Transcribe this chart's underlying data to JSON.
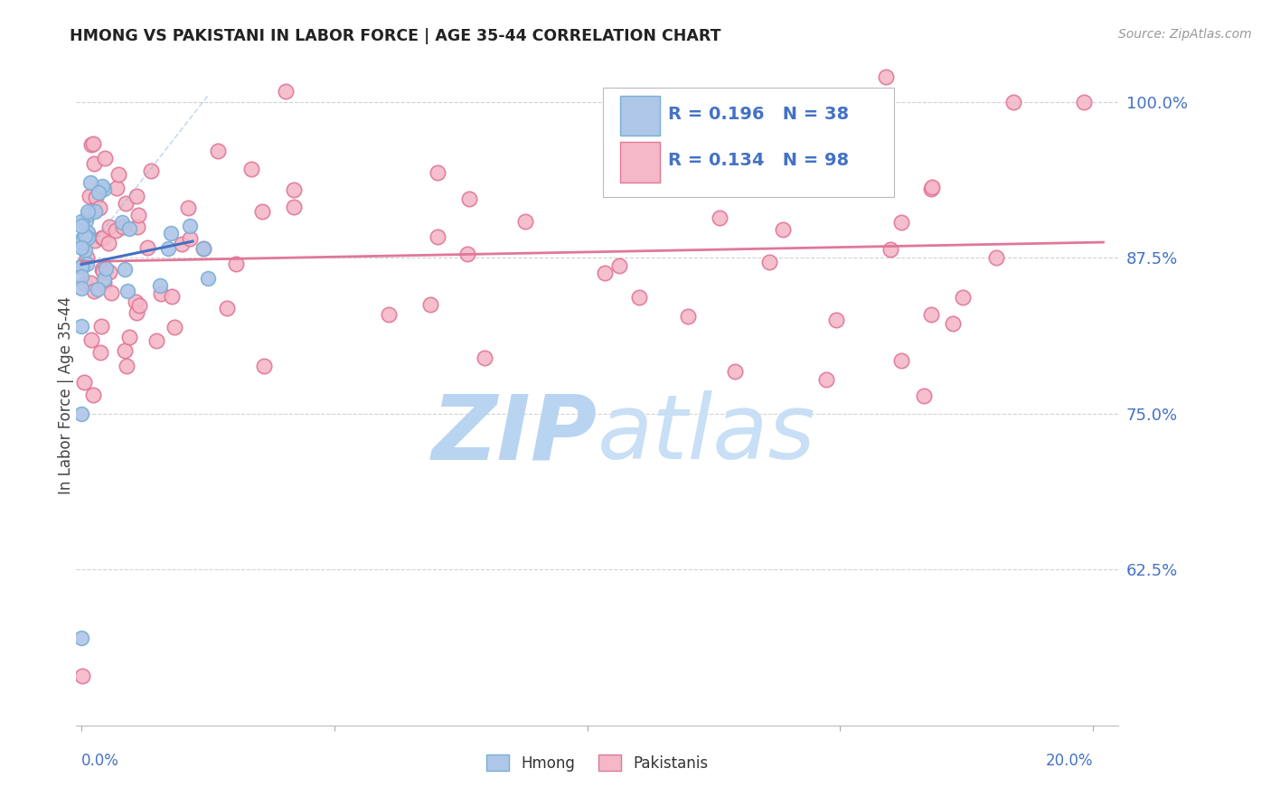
{
  "title": "HMONG VS PAKISTANI IN LABOR FORCE | AGE 35-44 CORRELATION CHART",
  "source": "Source: ZipAtlas.com",
  "ylabel": "In Labor Force | Age 35-44",
  "xmin": -0.001,
  "xmax": 0.205,
  "ymin": 0.5,
  "ymax": 1.03,
  "title_color": "#222222",
  "source_color": "#999999",
  "ytick_color": "#4472c4",
  "xtick_color": "#4472c4",
  "grid_color": "#cccccc",
  "watermark_zip_color": "#b8d4f0",
  "watermark_atlas_color": "#c8dff5",
  "hmong_color": "#aec6e8",
  "hmong_edge_color": "#7aafd4",
  "pakistani_color": "#f4b8c8",
  "pakistani_edge_color": "#e07898",
  "hmong_R": 0.196,
  "hmong_N": 38,
  "pakistani_R": 0.134,
  "pakistani_N": 98,
  "legend_color": "#4472c4",
  "hmong_line_color": "#4472c4",
  "pakistani_line_color": "#e07898",
  "hmong_dashed_color": "#90b8dc"
}
